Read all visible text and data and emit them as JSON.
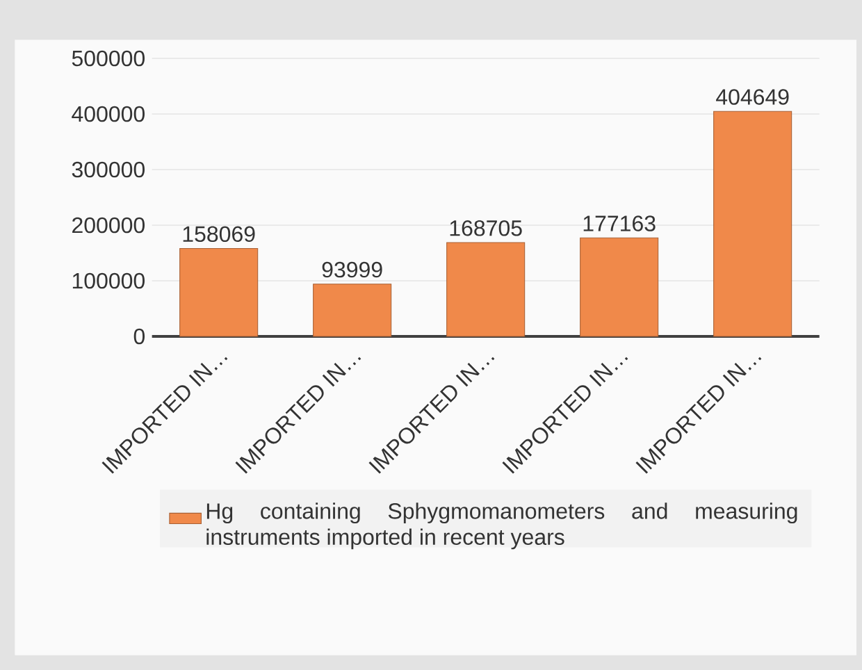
{
  "chart_data": {
    "type": "bar",
    "categories": [
      "IMPORTED IN…",
      "IMPORTED IN…",
      "IMPORTED IN…",
      "IMPORTED IN…",
      "IMPORTED IN…"
    ],
    "series": [
      {
        "name": "Hg containing Sphygmomanometers and measuring instruments imported in recent years",
        "color": "#f0894a",
        "values": [
          158069,
          93999,
          168705,
          177163,
          404649
        ]
      }
    ],
    "ylim": [
      0,
      500000
    ],
    "yticks": [
      0,
      100000,
      200000,
      300000,
      400000,
      500000
    ],
    "grid": "y",
    "legend": "bottom",
    "data_labels": true
  }
}
